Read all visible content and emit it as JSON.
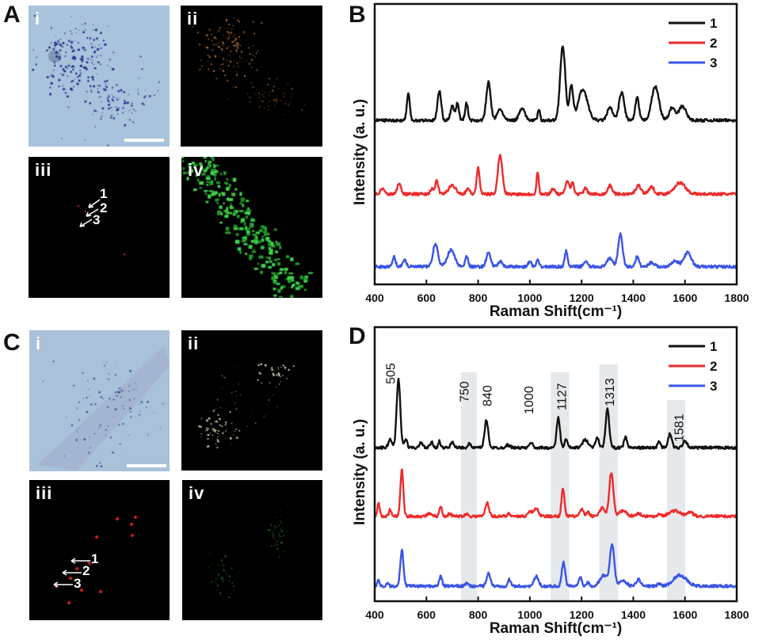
{
  "panels": {
    "A": {
      "label": "A",
      "sub": [
        "i",
        "ii",
        "iii",
        "iv"
      ],
      "markers": [
        "1",
        "2",
        "3"
      ]
    },
    "B": {
      "label": "B"
    },
    "C": {
      "label": "C",
      "sub": [
        "i",
        "ii",
        "iii",
        "iv"
      ],
      "markers": [
        "1",
        "2",
        "3"
      ]
    },
    "D": {
      "label": "D"
    }
  },
  "colors": {
    "series1": "#111111",
    "series2": "#ee2b2b",
    "series3": "#3b55e6",
    "band": "#e6e9ec",
    "brightfield": "#aac3dc"
  },
  "chart_data": [
    {
      "panel": "B",
      "type": "line",
      "xlabel": "Raman Shift(cm⁻¹)",
      "ylabel": "Intensity (a. u.)",
      "xlim": [
        400,
        1800
      ],
      "xticks": [
        "400",
        "600",
        "800",
        "1000",
        "1200",
        "1400",
        "1600",
        "1800"
      ],
      "yticks": "none",
      "grid": false,
      "legend": "top-right",
      "series": [
        {
          "name": "1",
          "color": "#111111",
          "baseline": 58.5,
          "peaks": [
            [
              530,
              9.5,
              8
            ],
            [
              650,
              10.5,
              10
            ],
            [
              700,
              5,
              10
            ],
            [
              720,
              6,
              8
            ],
            [
              755,
              6,
              8
            ],
            [
              840,
              13.5,
              12
            ],
            [
              885,
              4,
              15
            ],
            [
              970,
              4.5,
              15
            ],
            [
              1035,
              4,
              6
            ],
            [
              1127,
              26.5,
              14
            ],
            [
              1160,
              12,
              10
            ],
            [
              1205,
              11,
              25
            ],
            [
              1310,
              4.5,
              15
            ],
            [
              1355,
              10,
              14
            ],
            [
              1415,
              8,
              10
            ],
            [
              1485,
              12,
              20
            ],
            [
              1550,
              4.5,
              15
            ],
            [
              1590,
              5,
              20
            ]
          ]
        },
        {
          "name": "2",
          "color": "#ee2b2b",
          "baseline": 32.2,
          "peaks": [
            [
              430,
              2,
              10
            ],
            [
              495,
              4,
              10
            ],
            [
              620,
              2,
              8
            ],
            [
              640,
              5,
              8
            ],
            [
              700,
              3,
              20
            ],
            [
              760,
              2,
              10
            ],
            [
              800,
              9.5,
              8
            ],
            [
              885,
              14,
              12
            ],
            [
              1030,
              8,
              6
            ],
            [
              1090,
              2,
              10
            ],
            [
              1145,
              5,
              10
            ],
            [
              1165,
              4,
              8
            ],
            [
              1215,
              2,
              10
            ],
            [
              1310,
              3,
              12
            ],
            [
              1420,
              3,
              15
            ],
            [
              1470,
              2.5,
              15
            ],
            [
              1580,
              4,
              30
            ]
          ]
        },
        {
          "name": "3",
          "color": "#3b55e6",
          "baseline": 6.3,
          "peaks": [
            [
              475,
              3.5,
              8
            ],
            [
              515,
              2.5,
              10
            ],
            [
              635,
              8,
              14
            ],
            [
              695,
              6,
              20
            ],
            [
              755,
              4,
              8
            ],
            [
              840,
              5,
              12
            ],
            [
              885,
              2,
              10
            ],
            [
              1000,
              2,
              8
            ],
            [
              1030,
              2.5,
              6
            ],
            [
              1140,
              5.5,
              8
            ],
            [
              1215,
              2,
              10
            ],
            [
              1310,
              3,
              15
            ],
            [
              1350,
              11.5,
              12
            ],
            [
              1415,
              3.5,
              10
            ],
            [
              1470,
              1.5,
              15
            ],
            [
              1560,
              2,
              20
            ],
            [
              1610,
              5,
              20
            ]
          ]
        }
      ]
    },
    {
      "panel": "D",
      "type": "line",
      "xlabel": "Raman Shift(cm⁻¹)",
      "ylabel": "Intensity (a. u.)",
      "xlim": [
        400,
        1800
      ],
      "xticks": [
        "400",
        "600",
        "800",
        "1000",
        "1200",
        "1400",
        "1600",
        "1800"
      ],
      "yticks": "none",
      "grid": false,
      "legend": "top-right",
      "annotations": [
        "505",
        "750",
        "840",
        "1000",
        "1127",
        "1313",
        "1581"
      ],
      "annotation_x": [
        505,
        750,
        840,
        1000,
        1127,
        1313,
        1581
      ],
      "bands": [
        [
          734,
          795
        ],
        [
          1081,
          1152
        ],
        [
          1269,
          1341
        ],
        [
          1530,
          1601
        ]
      ],
      "series": [
        {
          "name": "1",
          "color": "#111111",
          "baseline": 56,
          "peaks": [
            [
              460,
              3,
              10
            ],
            [
              492,
              25,
              10
            ],
            [
              520,
              3,
              8
            ],
            [
              580,
              2,
              8
            ],
            [
              620,
              2,
              8
            ],
            [
              650,
              2.5,
              6
            ],
            [
              700,
              2.5,
              8
            ],
            [
              765,
              1.5,
              8
            ],
            [
              832,
              10,
              10
            ],
            [
              915,
              1,
              12
            ],
            [
              1005,
              2,
              8
            ],
            [
              1110,
              11,
              9
            ],
            [
              1140,
              3,
              8
            ],
            [
              1215,
              3,
              15
            ],
            [
              1260,
              3.5,
              10
            ],
            [
              1300,
              14,
              10
            ],
            [
              1370,
              4,
              8
            ],
            [
              1500,
              2.5,
              8
            ],
            [
              1542,
              5,
              10
            ],
            [
              1600,
              2.5,
              12
            ]
          ]
        },
        {
          "name": "2",
          "color": "#ee2b2b",
          "baseline": 31,
          "peaks": [
            [
              415,
              5,
              6
            ],
            [
              460,
              2.5,
              6
            ],
            [
              505,
              17,
              8
            ],
            [
              610,
              1,
              10
            ],
            [
              655,
              3.5,
              7
            ],
            [
              690,
              1,
              8
            ],
            [
              755,
              0.8,
              10
            ],
            [
              835,
              5,
              10
            ],
            [
              920,
              1,
              8
            ],
            [
              1000,
              2,
              10
            ],
            [
              1025,
              3,
              12
            ],
            [
              1128,
              10,
              8
            ],
            [
              1200,
              2.5,
              10
            ],
            [
              1225,
              1.5,
              8
            ],
            [
              1280,
              3,
              15
            ],
            [
              1315,
              16,
              11
            ],
            [
              1360,
              2,
              20
            ],
            [
              1420,
              1,
              15
            ],
            [
              1500,
              1,
              8
            ],
            [
              1560,
              2,
              30
            ],
            [
              1620,
              1.5,
              15
            ]
          ]
        },
        {
          "name": "3",
          "color": "#3b55e6",
          "baseline": 5.5,
          "peaks": [
            [
              415,
              2.5,
              6
            ],
            [
              450,
              1,
              6
            ],
            [
              505,
              13,
              9
            ],
            [
              655,
              3.5,
              8
            ],
            [
              755,
              1,
              8
            ],
            [
              840,
              4.8,
              10
            ],
            [
              920,
              2.5,
              8
            ],
            [
              1025,
              3.5,
              12
            ],
            [
              1130,
              8.7,
              9
            ],
            [
              1195,
              3.5,
              8
            ],
            [
              1225,
              1.5,
              8
            ],
            [
              1285,
              4,
              20
            ],
            [
              1318,
              15,
              12
            ],
            [
              1360,
              2,
              20
            ],
            [
              1420,
              2.5,
              12
            ],
            [
              1500,
              1,
              8
            ],
            [
              1580,
              4,
              35
            ]
          ]
        }
      ]
    }
  ]
}
